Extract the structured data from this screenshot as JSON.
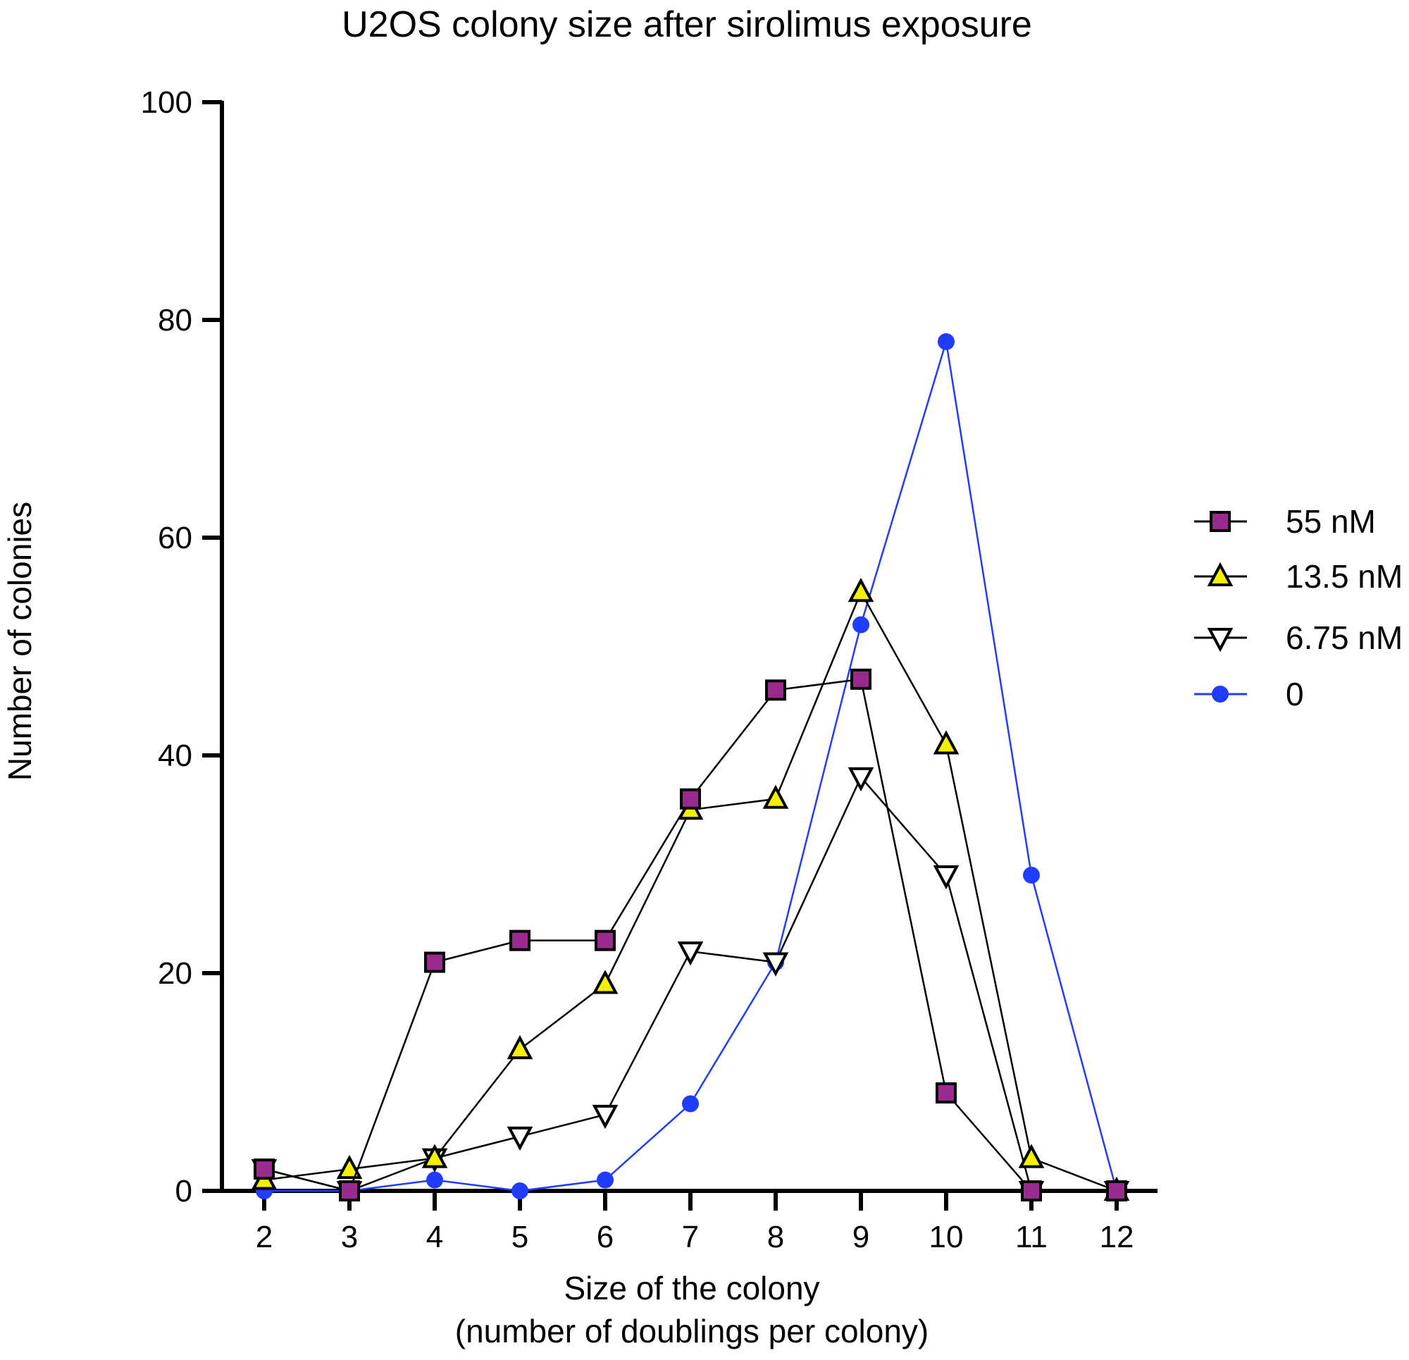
{
  "chart_data": {
    "type": "line",
    "title": "U2OS colony size after sirolimus exposure",
    "xlabel": [
      "Size of the colony",
      "(number of doublings per colony)"
    ],
    "ylabel": "Number of colonies",
    "x": [
      2,
      3,
      4,
      5,
      6,
      7,
      8,
      9,
      10,
      11,
      12
    ],
    "xlim": [
      2,
      12
    ],
    "ylim": [
      0,
      100
    ],
    "yticks": [
      0,
      20,
      40,
      60,
      80,
      100
    ],
    "grid": false,
    "legend_position": "right",
    "series": [
      {
        "name": "55 nM",
        "marker": "square",
        "line_color": "#000000",
        "marker_fill": "#9b2a8e",
        "values": [
          2,
          0,
          21,
          23,
          23,
          36,
          46,
          47,
          9,
          0,
          0
        ]
      },
      {
        "name": "13.5 nM",
        "marker": "triangle-up",
        "line_color": "#000000",
        "marker_fill": "#f5f000",
        "values": [
          1,
          2,
          3,
          13,
          19,
          35,
          36,
          55,
          41,
          3,
          0
        ]
      },
      {
        "name": "6.75 nM",
        "marker": "triangle-down",
        "line_color": "#000000",
        "marker_fill": "#ffffff",
        "values": [
          2,
          0,
          3,
          5,
          7,
          22,
          21,
          38,
          29,
          0,
          0
        ]
      },
      {
        "name": "0",
        "marker": "circle",
        "line_color": "#1f3cff",
        "marker_fill": "#1f3cff",
        "values": [
          0,
          0,
          1,
          0,
          1,
          8,
          21,
          52,
          78,
          29,
          0
        ]
      }
    ]
  }
}
